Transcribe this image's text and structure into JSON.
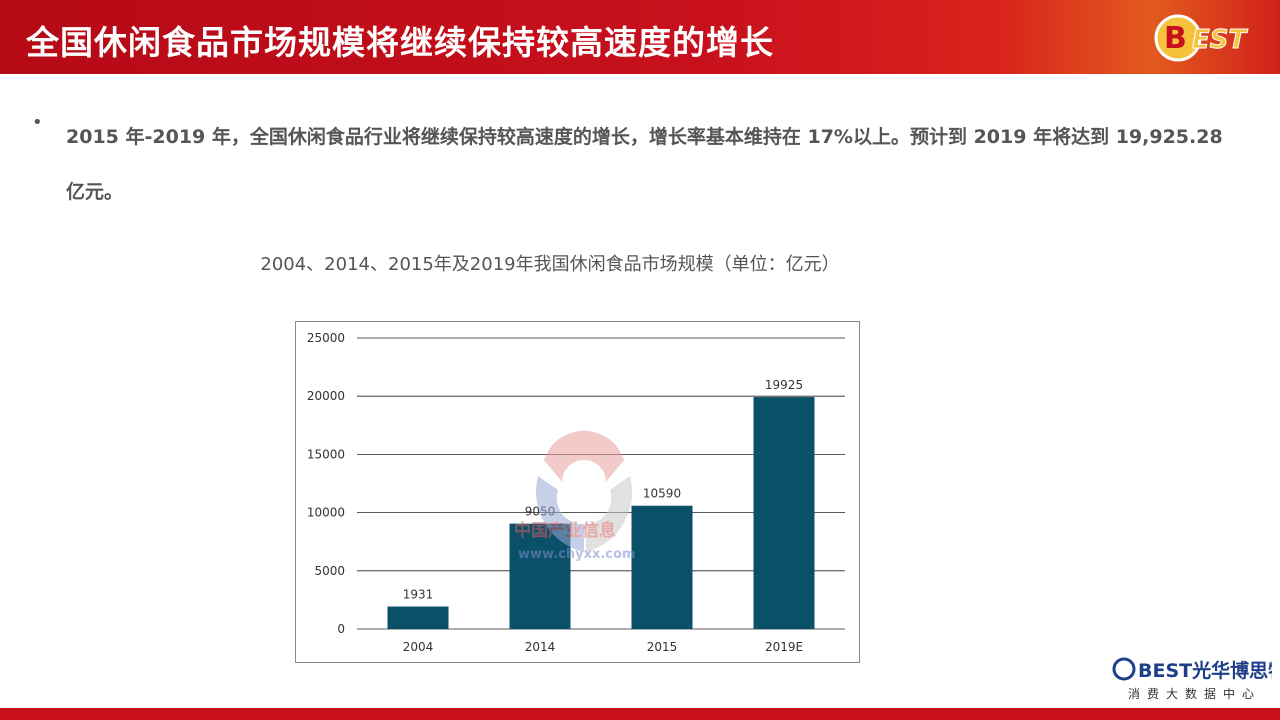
{
  "header": {
    "title": "全国休闲食品市场规模将继续保持较高速度的增长"
  },
  "logo": {
    "text": "BEST"
  },
  "body": {
    "bullet": "•",
    "paragraph": "2015 年-2019 年，全国休闲食品行业将继续保持较高速度的增长，增长率基本维持在 17%以上。预计到 2019 年将达到 19,925.28 亿元。"
  },
  "chart_data": {
    "type": "bar",
    "title": "2004、2014、2015年及2019年我国休闲食品市场规模（单位：亿元）",
    "categories": [
      "2004",
      "2014",
      "2015",
      "2019E"
    ],
    "values": [
      1931,
      9050,
      10590,
      19925
    ],
    "data_labels": [
      "1931",
      "9050",
      "10590",
      "19925"
    ],
    "ylim": [
      0,
      25000
    ],
    "yticks": [
      "0",
      "5000",
      "10000",
      "15000",
      "20000",
      "25000"
    ],
    "grid": true,
    "bar_color": "#0b5069",
    "legend": "none"
  },
  "watermark": {
    "line1": "中国产业信息",
    "line2": "www.chyxx.com"
  },
  "footer": {
    "brand": "BEST光华博思特",
    "subtitle": "消费大数据中心"
  },
  "colors": {
    "header": "#c8101d",
    "bar": "#0b5069",
    "text": "#555555"
  }
}
